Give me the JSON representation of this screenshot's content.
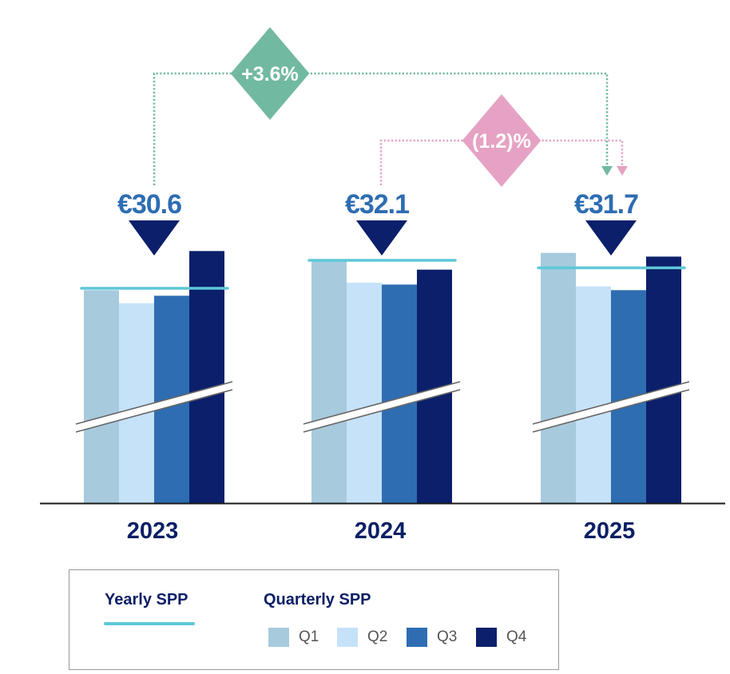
{
  "chart_data": {
    "type": "bar",
    "title": "",
    "xlabel": "",
    "ylabel": "",
    "categories": [
      "2023",
      "2024",
      "2025"
    ],
    "series": [
      {
        "name": "Q1",
        "values": [
          30.5,
          32.1,
          32.5
        ]
      },
      {
        "name": "Q2",
        "values": [
          29.8,
          30.9,
          30.7
        ]
      },
      {
        "name": "Q3",
        "values": [
          30.2,
          30.8,
          30.5
        ]
      },
      {
        "name": "Q4",
        "values": [
          32.6,
          31.6,
          32.3
        ]
      }
    ],
    "yearly": {
      "name": "Yearly SPP",
      "values": [
        30.6,
        32.1,
        31.7
      ],
      "labels": [
        "€30.6",
        "€32.1",
        "€31.7"
      ]
    },
    "axis_break": true,
    "ylim_visible": [
      25.0,
      33.5
    ],
    "annotations": [
      {
        "label": "+3.6%",
        "from": "2023",
        "to": "2025",
        "color": "#72b9a1"
      },
      {
        "label": "(1.2)%",
        "from": "2024",
        "to": "2025",
        "color": "#e6a2c4"
      }
    ],
    "legend": {
      "position": "bottom",
      "yearly_title": "Yearly SPP",
      "quarterly_title": "Quarterly SPP",
      "items": [
        "Q1",
        "Q2",
        "Q3",
        "Q4"
      ]
    },
    "colors": {
      "Q1": "#a7cadd",
      "Q2": "#c6e2f9",
      "Q3": "#2e6db2",
      "Q4": "#0b1f6b",
      "yearly": "#5ec8d8",
      "value_label": "#2e6db2",
      "marker": "#0b1f6b",
      "year_label": "#0b1f66",
      "axis": "#1a1a1a"
    }
  }
}
